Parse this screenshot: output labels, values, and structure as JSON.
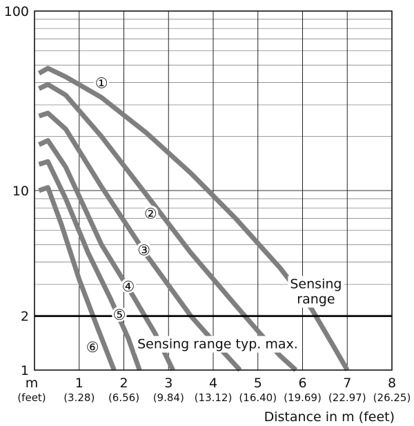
{
  "chart_data": {
    "type": "line",
    "title": "",
    "xlabel": "Distance in m (feet)",
    "ylabel": "",
    "x_unit_label": "m",
    "x_secondary_unit_label": "(feet)",
    "xlim": [
      0,
      8
    ],
    "ylim": [
      1,
      100
    ],
    "y_scale": "log",
    "grid": true,
    "x_ticks": [
      {
        "value": 1,
        "label": "1",
        "feet": "(3.28)"
      },
      {
        "value": 2,
        "label": "2",
        "feet": "(6.56)"
      },
      {
        "value": 3,
        "label": "3",
        "feet": "(9.84)"
      },
      {
        "value": 4,
        "label": "4",
        "feet": "(13.12)"
      },
      {
        "value": 5,
        "label": "5",
        "feet": "(16.40)"
      },
      {
        "value": 6,
        "label": "6",
        "feet": "(19.69)"
      },
      {
        "value": 7,
        "label": "7",
        "feet": "(22.97)"
      },
      {
        "value": 8,
        "label": "8",
        "feet": "(26.25)"
      }
    ],
    "y_ticks": [
      {
        "value": 1,
        "label": "1"
      },
      {
        "value": 2,
        "label": "2"
      },
      {
        "value": 10,
        "label": "10"
      },
      {
        "value": 100,
        "label": "100"
      }
    ],
    "reference_line": {
      "y": 2
    },
    "annotations": [
      {
        "text": "Sensing",
        "x": 6.3,
        "y": 2.85
      },
      {
        "text": "range",
        "x": 6.3,
        "y": 2.35
      },
      {
        "text": "Sensing range typ. max.",
        "x": 4.1,
        "y": 1.32
      }
    ],
    "series": [
      {
        "marker": "①",
        "marker_at": [
          1.5,
          40
        ],
        "color": "#7f7f7f",
        "points": [
          [
            0.1,
            45
          ],
          [
            0.3,
            48
          ],
          [
            0.7,
            43
          ],
          [
            1.5,
            33
          ],
          [
            2.5,
            21
          ],
          [
            3.5,
            12.5
          ],
          [
            4.5,
            7
          ],
          [
            5.5,
            3.7
          ],
          [
            6.2,
            2.2
          ],
          [
            6.7,
            1.35
          ],
          [
            7.0,
            1.0
          ]
        ]
      },
      {
        "marker": "②",
        "marker_at": [
          2.6,
          7.5
        ],
        "color": "#7f7f7f",
        "points": [
          [
            0.1,
            37
          ],
          [
            0.3,
            39
          ],
          [
            0.7,
            34
          ],
          [
            1.5,
            20
          ],
          [
            2.5,
            9.5
          ],
          [
            3.5,
            4.5
          ],
          [
            4.5,
            2.3
          ],
          [
            5.0,
            1.65
          ],
          [
            5.5,
            1.2
          ],
          [
            5.85,
            1.0
          ]
        ]
      },
      {
        "marker": "③",
        "marker_at": [
          2.45,
          4.7
        ],
        "color": "#7f7f7f",
        "points": [
          [
            0.1,
            26
          ],
          [
            0.3,
            27
          ],
          [
            0.7,
            22
          ],
          [
            1.5,
            10.5
          ],
          [
            2.5,
            4.4
          ],
          [
            3.5,
            2.0
          ],
          [
            4.0,
            1.45
          ],
          [
            4.6,
            1.0
          ]
        ]
      },
      {
        "marker": "④",
        "marker_at": [
          2.1,
          2.95
        ],
        "color": "#7f7f7f",
        "points": [
          [
            0.1,
            18
          ],
          [
            0.3,
            19
          ],
          [
            0.7,
            13.5
          ],
          [
            1.5,
            5.0
          ],
          [
            2.2,
            2.6
          ],
          [
            2.7,
            1.6
          ],
          [
            3.1,
            1.0
          ]
        ]
      },
      {
        "marker": "⑤",
        "marker_at": [
          1.9,
          2.05
        ],
        "color": "#7f7f7f",
        "points": [
          [
            0.1,
            14
          ],
          [
            0.3,
            14.5
          ],
          [
            0.7,
            9
          ],
          [
            1.2,
            4.5
          ],
          [
            1.7,
            2.5
          ],
          [
            2.1,
            1.5
          ],
          [
            2.35,
            1.0
          ]
        ]
      },
      {
        "marker": "⑥",
        "marker_at": [
          1.3,
          1.35
        ],
        "color": "#7f7f7f",
        "points": [
          [
            0.1,
            10
          ],
          [
            0.3,
            10.4
          ],
          [
            0.6,
            6.5
          ],
          [
            1.0,
            3.2
          ],
          [
            1.4,
            1.75
          ],
          [
            1.78,
            1.0
          ]
        ]
      }
    ]
  }
}
